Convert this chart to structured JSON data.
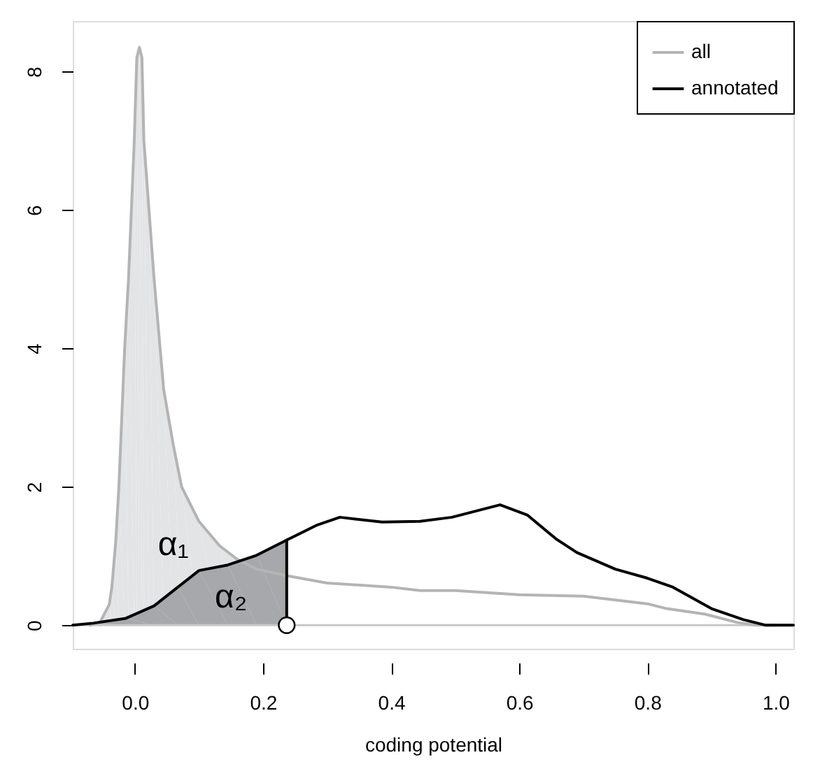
{
  "chart_data": {
    "type": "line",
    "xlabel": "coding potential",
    "xlim": [
      -0.097,
      1.028
    ],
    "ylim": [
      -0.34,
      8.73
    ],
    "xticks": [
      {
        "value": 0,
        "label": "0.0"
      },
      0.2,
      0.4,
      0.6,
      0.8,
      {
        "value": 1,
        "label": "1.0"
      }
    ],
    "yticks": [
      0,
      2,
      4,
      6,
      8
    ],
    "grid": false,
    "legend": "top right",
    "ref_lines": [
      {
        "axis": "y",
        "value": 0,
        "color": "#c8c8c8"
      }
    ],
    "annotations": [
      {
        "text": "α₁",
        "x": 0.06,
        "y": 1.15
      },
      {
        "text": "α₂",
        "x": 0.15,
        "y": 0.4
      }
    ],
    "series": [
      {
        "type": "area",
        "color": "#e3e4e6",
        "x": [
          -0.07,
          -0.054,
          -0.04,
          -0.036,
          -0.03,
          -0.025,
          -0.016,
          -0.01,
          -0.001,
          0.003,
          0.007,
          0.011,
          0.014,
          0.022,
          0.03,
          0.045,
          0.06,
          0.073,
          0.1,
          0.132,
          0.16,
          0.237
        ],
        "values": [
          0,
          0.05,
          0.3,
          0.55,
          1.2,
          2.0,
          4.0,
          5.0,
          7.0,
          8.2,
          8.35,
          8.2,
          7.0,
          6.0,
          5.0,
          3.4,
          2.6,
          2.0,
          1.5,
          1.15,
          0.95,
          0.71
        ]
      },
      {
        "type": "area",
        "color": "#a6a8ab",
        "x": [
          -0.097,
          -0.065,
          -0.014,
          0.03,
          0.067,
          0.1,
          0.145,
          0.19,
          0.237
        ],
        "values": [
          0,
          0.03,
          0.1,
          0.28,
          0.55,
          0.79,
          0.87,
          1.01,
          1.23
        ]
      },
      {
        "name": "all",
        "color": "#b4b4b4",
        "x": [
          -0.07,
          -0.054,
          -0.04,
          -0.036,
          -0.03,
          -0.025,
          -0.016,
          -0.01,
          -0.001,
          0.003,
          0.007,
          0.011,
          0.014,
          0.022,
          0.03,
          0.045,
          0.06,
          0.073,
          0.1,
          0.132,
          0.16,
          0.19,
          0.24,
          0.3,
          0.4,
          0.445,
          0.5,
          0.6,
          0.7,
          0.8,
          0.83,
          0.89,
          0.94,
          0.97,
          1.0
        ],
        "values": [
          0,
          0.05,
          0.3,
          0.55,
          1.2,
          2.0,
          4.0,
          5.0,
          7.0,
          8.2,
          8.35,
          8.2,
          7.0,
          6.0,
          5.0,
          3.4,
          2.6,
          2.0,
          1.5,
          1.15,
          0.95,
          0.81,
          0.71,
          0.61,
          0.55,
          0.5,
          0.5,
          0.44,
          0.42,
          0.31,
          0.24,
          0.16,
          0.04,
          0,
          0
        ]
      },
      {
        "name": "annotated",
        "color": "#000000",
        "x": [
          -0.097,
          -0.065,
          -0.014,
          0.03,
          0.067,
          0.1,
          0.145,
          0.19,
          0.237,
          0.285,
          0.32,
          0.386,
          0.445,
          0.495,
          0.57,
          0.613,
          0.657,
          0.69,
          0.75,
          0.8,
          0.84,
          0.9,
          0.95,
          0.985,
          1.028
        ],
        "values": [
          0,
          0.03,
          0.1,
          0.28,
          0.55,
          0.79,
          0.87,
          1.01,
          1.23,
          1.45,
          1.56,
          1.49,
          1.5,
          1.56,
          1.74,
          1.59,
          1.25,
          1.05,
          0.81,
          0.68,
          0.55,
          0.24,
          0.08,
          0,
          0
        ]
      },
      {
        "color": "#000000",
        "x": [
          0.237,
          0.237
        ],
        "values": [
          0,
          1.23
        ]
      },
      {
        "type": "scatter",
        "color": "#ffffff",
        "marker": "circle",
        "x": [
          0.237
        ],
        "values": [
          0
        ]
      }
    ]
  }
}
